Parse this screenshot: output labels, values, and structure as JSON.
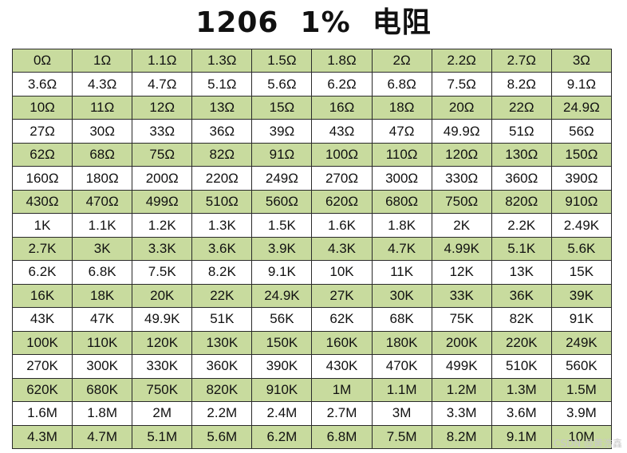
{
  "title": "1206  1%  电阻",
  "colors": {
    "green_row": "#c8db9e",
    "white_row": "#ffffff",
    "border": "#2a2a2a"
  },
  "rows": [
    [
      "0Ω",
      "1Ω",
      "1.1Ω",
      "1.3Ω",
      "1.5Ω",
      "1.8Ω",
      "2Ω",
      "2.2Ω",
      "2.7Ω",
      "3Ω"
    ],
    [
      "3.6Ω",
      "4.3Ω",
      "4.7Ω",
      "5.1Ω",
      "5.6Ω",
      "6.2Ω",
      "6.8Ω",
      "7.5Ω",
      "8.2Ω",
      "9.1Ω"
    ],
    [
      "10Ω",
      "11Ω",
      "12Ω",
      "13Ω",
      "15Ω",
      "16Ω",
      "18Ω",
      "20Ω",
      "22Ω",
      "24.9Ω"
    ],
    [
      "27Ω",
      "30Ω",
      "33Ω",
      "36Ω",
      "39Ω",
      "43Ω",
      "47Ω",
      "49.9Ω",
      "51Ω",
      "56Ω"
    ],
    [
      "62Ω",
      "68Ω",
      "75Ω",
      "82Ω",
      "91Ω",
      "100Ω",
      "110Ω",
      "120Ω",
      "130Ω",
      "150Ω"
    ],
    [
      "160Ω",
      "180Ω",
      "200Ω",
      "220Ω",
      "249Ω",
      "270Ω",
      "300Ω",
      "330Ω",
      "360Ω",
      "390Ω"
    ],
    [
      "430Ω",
      "470Ω",
      "499Ω",
      "510Ω",
      "560Ω",
      "620Ω",
      "680Ω",
      "750Ω",
      "820Ω",
      "910Ω"
    ],
    [
      "1K",
      "1.1K",
      "1.2K",
      "1.3K",
      "1.5K",
      "1.6K",
      "1.8K",
      "2K",
      "2.2K",
      "2.49K"
    ],
    [
      "2.7K",
      "3K",
      "3.3K",
      "3.6K",
      "3.9K",
      "4.3K",
      "4.7K",
      "4.99K",
      "5.1K",
      "5.6K"
    ],
    [
      "6.2K",
      "6.8K",
      "7.5K",
      "8.2K",
      "9.1K",
      "10K",
      "11K",
      "12K",
      "13K",
      "15K"
    ],
    [
      "16K",
      "18K",
      "20K",
      "22K",
      "24.9K",
      "27K",
      "30K",
      "33K",
      "36K",
      "39K"
    ],
    [
      "43K",
      "47K",
      "49.9K",
      "51K",
      "56K",
      "62K",
      "68K",
      "75K",
      "82K",
      "91K"
    ],
    [
      "100K",
      "110K",
      "120K",
      "130K",
      "150K",
      "160K",
      "180K",
      "200K",
      "220K",
      "249K"
    ],
    [
      "270K",
      "300K",
      "330K",
      "360K",
      "390K",
      "430K",
      "470K",
      "499K",
      "510K",
      "560K"
    ],
    [
      "620K",
      "680K",
      "750K",
      "820K",
      "910K",
      "1M",
      "1.1M",
      "1.2M",
      "1.3M",
      "1.5M"
    ],
    [
      "1.6M",
      "1.8M",
      "2M",
      "2.2M",
      "2.4M",
      "2.7M",
      "3M",
      "3.3M",
      "3.6M",
      "3.9M"
    ],
    [
      "4.3M",
      "4.7M",
      "5.1M",
      "5.6M",
      "6.2M",
      "6.8M",
      "7.5M",
      "8.2M",
      "9.1M",
      "10M"
    ]
  ],
  "watermark": "CSDN @黄浩鑫"
}
